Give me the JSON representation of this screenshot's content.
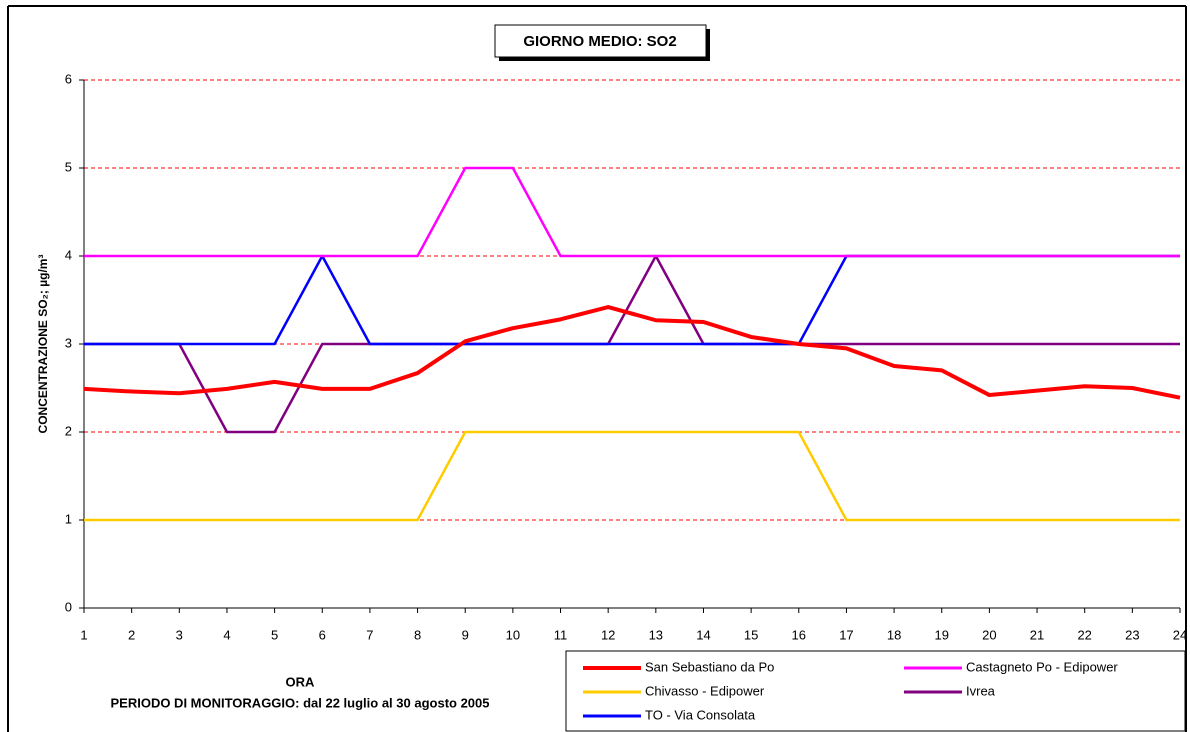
{
  "chart_data": {
    "type": "line",
    "title": "GIORNO MEDIO: SO2",
    "x_label": "ORA",
    "note": "PERIODO DI MONITORAGGIO: dal 22 luglio al 30 agosto 2005",
    "y_label": "CONCENTRAZIONE SO₂; µg/m³",
    "x": [
      1,
      2,
      3,
      4,
      5,
      6,
      7,
      8,
      9,
      10,
      11,
      12,
      13,
      14,
      15,
      16,
      17,
      18,
      19,
      20,
      21,
      22,
      23,
      24
    ],
    "xlim": [
      1,
      24
    ],
    "ylim": [
      0,
      6
    ],
    "yticks": [
      0,
      1,
      2,
      3,
      4,
      5,
      6
    ],
    "grid": true,
    "series": [
      {
        "name": "San Sebastiano da Po",
        "color": "#ff0000",
        "values": [
          2.49,
          2.46,
          2.44,
          2.49,
          2.57,
          2.49,
          2.49,
          2.67,
          3.03,
          3.18,
          3.28,
          3.42,
          3.27,
          3.25,
          3.08,
          3.0,
          2.95,
          2.75,
          2.7,
          2.42,
          2.47,
          2.52,
          2.5,
          2.39
        ]
      },
      {
        "name": "Castagneto Po - Edipower",
        "color": "#ff00ff",
        "values": [
          4,
          4,
          4,
          4,
          4,
          4,
          4,
          4,
          5,
          5,
          4,
          4,
          4,
          4,
          4,
          4,
          4,
          4,
          4,
          4,
          4,
          4,
          4,
          4
        ]
      },
      {
        "name": "Chivasso - Edipower",
        "color": "#ffcc00",
        "values": [
          1,
          1,
          1,
          1,
          1,
          1,
          1,
          1,
          2,
          2,
          2,
          2,
          2,
          2,
          2,
          2,
          1,
          1,
          1,
          1,
          1,
          1,
          1,
          1
        ]
      },
      {
        "name": "Ivrea",
        "color": "#800080",
        "values": [
          3,
          3,
          3,
          2,
          2,
          3,
          3,
          3,
          3,
          3,
          3,
          3,
          4,
          3,
          3,
          3,
          3,
          3,
          3,
          3,
          3,
          3,
          3,
          3
        ]
      },
      {
        "name": "TO - Via Consolata",
        "color": "#0000ff",
        "values": [
          3,
          3,
          3,
          3,
          3,
          4,
          3,
          3,
          3,
          3,
          3,
          3,
          3,
          3,
          3,
          3,
          4,
          4,
          4,
          4,
          4,
          4,
          4,
          4
        ]
      }
    ]
  }
}
